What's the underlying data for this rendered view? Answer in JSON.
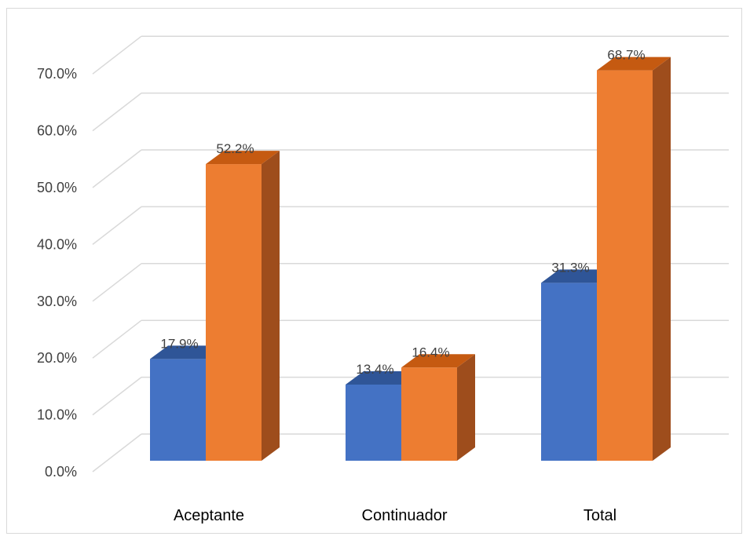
{
  "chart_data": {
    "type": "bar",
    "style": "3d-clustered-column",
    "categories": [
      "Aceptante",
      "Continuador",
      "Total"
    ],
    "series": [
      {
        "values": [
          17.9,
          13.4,
          31.3
        ],
        "labels": [
          "17.9%",
          "13.4%",
          "31.3%"
        ],
        "color": "#4472c4",
        "top_color": "#2f5597",
        "side_color": "#2f5597"
      },
      {
        "values": [
          52.2,
          16.4,
          68.7
        ],
        "labels": [
          "52.2%",
          "16.4%",
          "68.7%"
        ],
        "color": "#ed7d31",
        "top_color": "#c55a11",
        "side_color": "#9e4d1c"
      }
    ],
    "yticks": [
      "0.0%",
      "10.0%",
      "20.0%",
      "30.0%",
      "40.0%",
      "50.0%",
      "60.0%",
      "70.0%"
    ],
    "ylim": [
      0,
      70
    ],
    "grid": true,
    "grid_color": "#d9d9d9",
    "legend": "none"
  }
}
